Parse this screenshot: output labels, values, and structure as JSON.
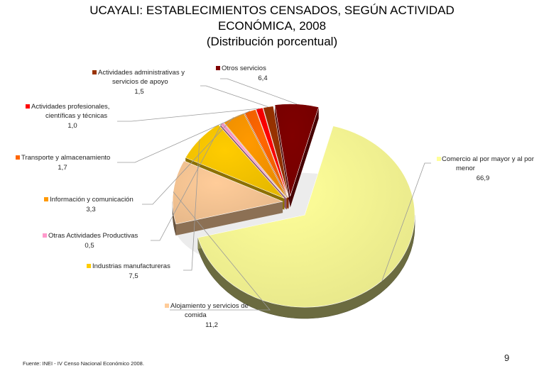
{
  "title": {
    "line1": "UCAYALI: ESTABLECIMIENTOS CENSADOS, SEGÚN ACTIVIDAD",
    "line2": "ECONÓMICA, 2008",
    "line3": "(Distribución porcentual)"
  },
  "chart_data": {
    "type": "pie",
    "style": "3d-exploded",
    "legend_placement": "labels around pie",
    "slices": [
      {
        "label_lines": [
          "Comercio al por mayor y al por",
          "menor"
        ],
        "value": 66.9,
        "value_text": "66,9",
        "color": "#FFFF99"
      },
      {
        "label_lines": [
          "Alojamiento y servicios de",
          "comida"
        ],
        "value": 11.2,
        "value_text": "11,2",
        "color": "#FFCC99"
      },
      {
        "label_lines": [
          "Industrias manufactureras"
        ],
        "value": 7.5,
        "value_text": "7,5",
        "color": "#FFCC00"
      },
      {
        "label_lines": [
          "Otras Actividades Productivas"
        ],
        "value": 0.5,
        "value_text": "0,5",
        "color": "#FF99CC"
      },
      {
        "label_lines": [
          "Información y comunicación"
        ],
        "value": 3.3,
        "value_text": "3,3",
        "color": "#FF9900"
      },
      {
        "label_lines": [
          "Transporte y almacenamiento"
        ],
        "value": 1.7,
        "value_text": "1,7",
        "color": "#FF6600"
      },
      {
        "label_lines": [
          "Actividades profesionales,",
          "científicas y técnicas"
        ],
        "value": 1.0,
        "value_text": "1,0",
        "color": "#FF0000"
      },
      {
        "label_lines": [
          "Actividades administrativas y",
          "servicios de apoyo"
        ],
        "value": 1.5,
        "value_text": "1,5",
        "color": "#993300"
      },
      {
        "label_lines": [
          "Otros servicios"
        ],
        "value": 6.4,
        "value_text": "6,4",
        "color": "#800000"
      }
    ]
  },
  "footer": {
    "source": "Fuente: INEI - IV Censo Nacional Económico 2008.",
    "page_number": "9"
  }
}
